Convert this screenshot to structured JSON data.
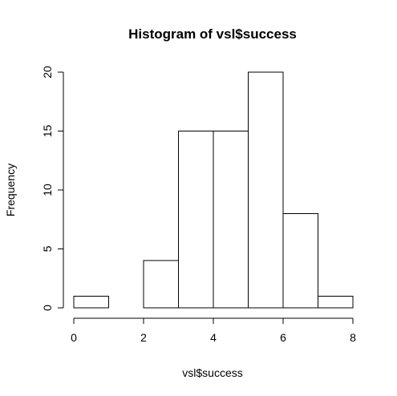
{
  "chart_data": {
    "type": "bar",
    "title": "Histogram of vsl$success",
    "xlabel": "vsl$success",
    "ylabel": "Frequency",
    "bins": [
      {
        "start": 0,
        "end": 1,
        "count": 1
      },
      {
        "start": 1,
        "end": 2,
        "count": 0
      },
      {
        "start": 2,
        "end": 3,
        "count": 4
      },
      {
        "start": 3,
        "end": 4,
        "count": 15
      },
      {
        "start": 4,
        "end": 5,
        "count": 15
      },
      {
        "start": 5,
        "end": 6,
        "count": 20
      },
      {
        "start": 6,
        "end": 7,
        "count": 8
      },
      {
        "start": 7,
        "end": 8,
        "count": 1
      }
    ],
    "xlim": [
      0,
      8
    ],
    "ylim": [
      0,
      20
    ],
    "x_ticks": [
      0,
      2,
      4,
      6,
      8
    ],
    "y_ticks": [
      0,
      5,
      10,
      15,
      20
    ],
    "x_tick_labels": [
      "0",
      "2",
      "4",
      "6",
      "8"
    ],
    "y_tick_labels": [
      "0",
      "5",
      "10",
      "15",
      "20"
    ],
    "grid": false,
    "legend": "none",
    "colors": {
      "bar_fill": "#ffffff",
      "bar_stroke": "#000000",
      "axis": "#000000",
      "background": "#ffffff"
    }
  }
}
